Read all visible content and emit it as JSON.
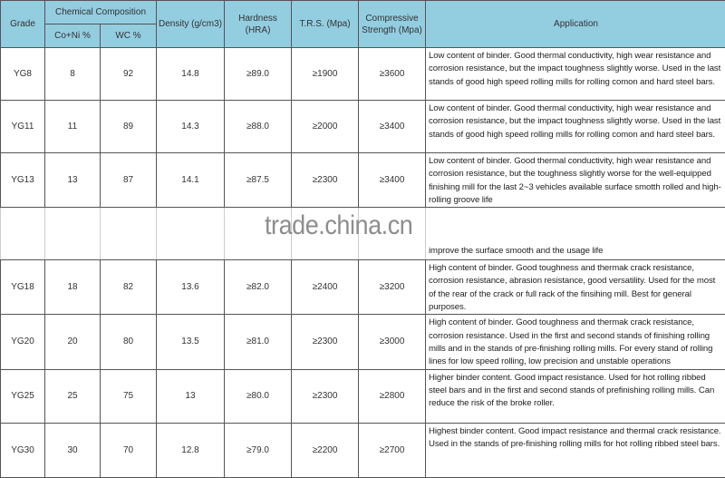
{
  "headers": {
    "grade": "Grade",
    "chemical_composition": "Chemical Composition",
    "co_ni": "Co+Ni %",
    "wc": "WC %",
    "density": "Density (g/cm3)",
    "hardness": "Hardness (HRA)",
    "trs": "T.R.S. (Mpa)",
    "compressive": "Compressive Strength (Mpa)",
    "application": "Application"
  },
  "rows": [
    {
      "grade": "YG8",
      "co_ni": "8",
      "wc": "92",
      "density": "14.8",
      "hardness": "≥89.0",
      "trs": "≥1900",
      "compressive": "≥3600",
      "application": "Low content of binder. Good thermal conductivity, high wear resistance and corrosion resistance, but the impact toughness slightly worse. Used in the last stands of good high speed rolling mills for rolling comon and hard steel bars."
    },
    {
      "grade": "YG11",
      "co_ni": "11",
      "wc": "89",
      "density": "14.3",
      "hardness": "≥88.0",
      "trs": "≥2000",
      "compressive": "≥3400",
      "application": "Low content of binder. Good thermal conductivity, high wear resistance and corrosion resistance, but the impact toughness slightly worse. Used in the last stands of good high speed rolling mills for rolling comon and hard steel bars."
    },
    {
      "grade": "YG13",
      "co_ni": "13",
      "wc": "87",
      "density": "14.1",
      "hardness": "≥87.5",
      "trs": "≥2300",
      "compressive": "≥3400",
      "application": "Low content of binder. Good thermal conductivity, high wear resistance and corrosion resistance, but the toughness slightly worse for the well-equipped finishing mill for the last 2~3 vehicles available surface smotth rolled and high-rolling groove life"
    },
    {
      "grade": "",
      "co_ni": "",
      "wc": "",
      "density": "",
      "hardness": "",
      "trs": "",
      "compressive": "",
      "application": "improve the surface smooth and the usage life"
    },
    {
      "grade": "YG18",
      "co_ni": "18",
      "wc": "82",
      "density": "13.6",
      "hardness": "≥82.0",
      "trs": "≥2400",
      "compressive": "≥3200",
      "application": "High content of binder. Good toughness and thermak crack resistance, corrosion resistance, abrasion resistance, good versatility. Used for the most of the rear of the crack or full rack of the finsihing mill. Best for general purposes."
    },
    {
      "grade": "YG20",
      "co_ni": "20",
      "wc": "80",
      "density": "13.5",
      "hardness": "≥81.0",
      "trs": "≥2300",
      "compressive": "≥3000",
      "application": "High content of binder. Good toughness and thermak crack resistance, corrosion resistance. Used in the first and second stands of finishing rolling mills and in the stands of pre-finishing rolling mills. For every stand of rolling lines for low speed rolling, low precision and unstable operations"
    },
    {
      "grade": "YG25",
      "co_ni": "25",
      "wc": "75",
      "density": "13",
      "hardness": "≥80.0",
      "trs": "≥2300",
      "compressive": "≥2800",
      "application": "Higher binder content. Good impact resistance. Used for hot rolling ribbed steel bars and in the first and second stands of prefinishing rolling mills. Can reduce the risk of the broke roller."
    },
    {
      "grade": "YG30",
      "co_ni": "30",
      "wc": "70",
      "density": "12.8",
      "hardness": "≥79.0",
      "trs": "≥2200",
      "compressive": "≥2700",
      "application": "Highest binder content. Good impact resistance and thermal crack resistance. Used in the stands of pre-finishing rolling mills for hot rolling ribbed steel bars."
    }
  ],
  "watermark": "trade.china.cn",
  "colors": {
    "header_bg": "#93cde0",
    "grid": "#555555"
  }
}
